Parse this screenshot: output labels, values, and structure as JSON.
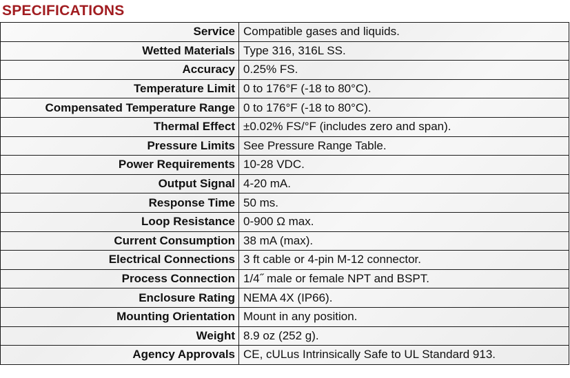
{
  "title": "SPECIFICATIONS",
  "colors": {
    "title": "#a11d21",
    "border": "#1a1a1a",
    "text": "#111111"
  },
  "rows": [
    {
      "label": "Service",
      "value": "Compatible gases and liquids."
    },
    {
      "label": "Wetted Materials",
      "value": "Type 316, 316L SS."
    },
    {
      "label": "Accuracy",
      "value": "0.25% FS."
    },
    {
      "label": "Temperature Limit",
      "value": "0 to 176°F (-18 to 80°C)."
    },
    {
      "label": "Compensated Temperature Range",
      "value": "0 to 176°F (-18 to 80°C)."
    },
    {
      "label": "Thermal Effect",
      "value": "±0.02% FS/°F (includes zero and span)."
    },
    {
      "label": "Pressure Limits",
      "value": "See Pressure Range Table."
    },
    {
      "label": "Power Requirements",
      "value": "10-28 VDC."
    },
    {
      "label": "Output Signal",
      "value": "4-20 mA."
    },
    {
      "label": "Response Time",
      "value": "50 ms."
    },
    {
      "label": "Loop Resistance",
      "value": "0-900 Ω max."
    },
    {
      "label": "Current Consumption",
      "value": "38 mA (max)."
    },
    {
      "label": "Electrical Connections",
      "value": "3 ft cable or 4-pin M-12 connector."
    },
    {
      "label": "Process Connection",
      "value": "1/4˝ male or female NPT and BSPT."
    },
    {
      "label": "Enclosure Rating",
      "value": "NEMA 4X (IP66)."
    },
    {
      "label": "Mounting Orientation",
      "value": "Mount in any position."
    },
    {
      "label": "Weight",
      "value": "8.9 oz (252 g)."
    },
    {
      "label": "Agency Approvals",
      "value": "CE, cULus Intrinsically Safe to UL Standard 913."
    }
  ]
}
